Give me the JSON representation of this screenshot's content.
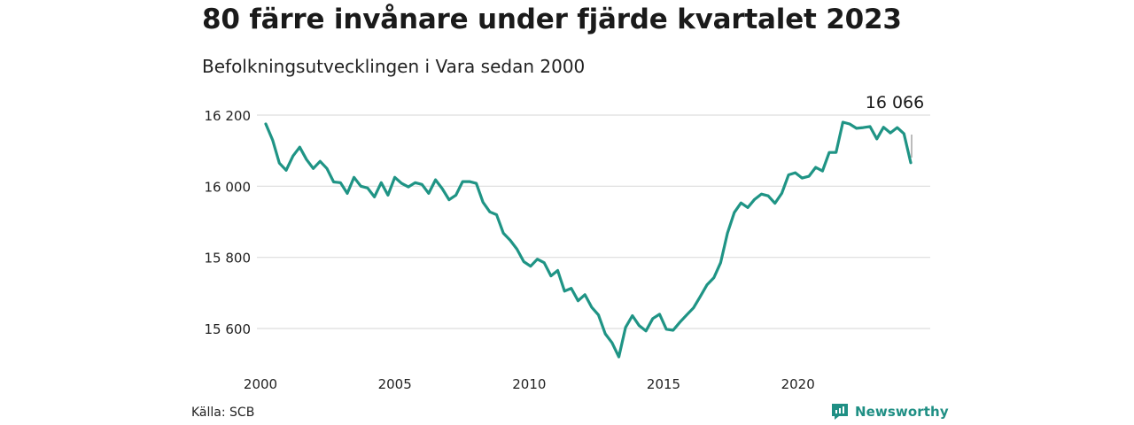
{
  "title": "80 färre invånare under fjärde kvartalet 2023",
  "subtitle": "Befolkningsutvecklingen i Vara sedan 2000",
  "source": "Källa: SCB",
  "brand": "Newsworthy",
  "colors": {
    "line": "#1f9485",
    "grid": "#dddddd",
    "brand": "#1f8f84"
  },
  "chart_data": {
    "type": "line",
    "title": "80 färre invånare under fjärde kvartalet 2023",
    "subtitle": "Befolkningsutvecklingen i Vara sedan 2000",
    "xlabel": "",
    "ylabel": "",
    "ylim": [
      15500,
      16250
    ],
    "xlim": [
      2000,
      2024
    ],
    "yticks": [
      15600,
      15800,
      16000,
      16200
    ],
    "ytick_labels": [
      "15 600",
      "15 800",
      "16 000",
      "16 200"
    ],
    "xticks": [
      2000,
      2005,
      2010,
      2015,
      2020
    ],
    "xtick_labels": [
      "2000",
      "2005",
      "2010",
      "2015",
      "2020"
    ],
    "grid": true,
    "last_value_label": "16 066",
    "series": [
      {
        "values": [
          16175,
          16130,
          16065,
          16045,
          16085,
          16110,
          16075,
          16050,
          16070,
          16050,
          16012,
          16010,
          15980,
          16025,
          16000,
          15995,
          15970,
          16010,
          15975,
          16025,
          16008,
          15998,
          16010,
          16005,
          15980,
          16018,
          15993,
          15962,
          15975,
          16013,
          16013,
          16008,
          15955,
          15928,
          15920,
          15868,
          15848,
          15823,
          15788,
          15775,
          15795,
          15785,
          15748,
          15763,
          15705,
          15713,
          15678,
          15695,
          15660,
          15638,
          15585,
          15560,
          15520,
          15603,
          15636,
          15608,
          15593,
          15628,
          15640,
          15598,
          15595,
          15618,
          15638,
          15658,
          15690,
          15723,
          15743,
          15785,
          15868,
          15926,
          15953,
          15940,
          15963,
          15978,
          15973,
          15952,
          15980,
          16032,
          16038,
          16023,
          16028,
          16053,
          16043,
          16095,
          16095,
          16180,
          16175,
          16163,
          16165,
          16168,
          16133,
          16166,
          16150,
          16165,
          16148,
          16066
        ]
      }
    ]
  }
}
